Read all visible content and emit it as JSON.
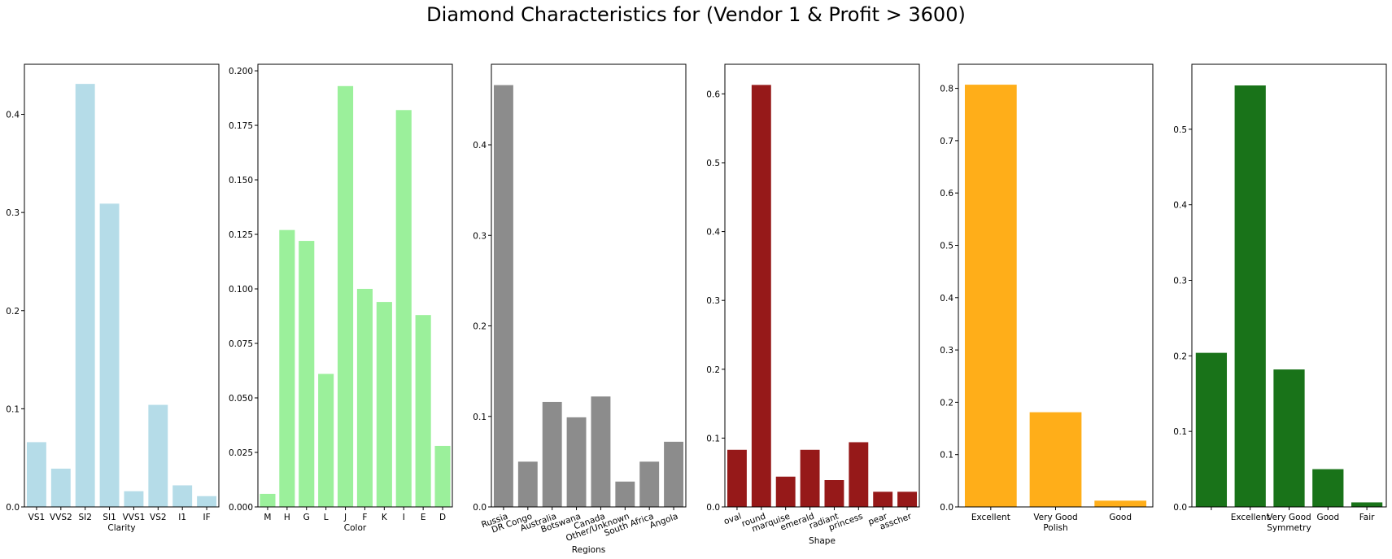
{
  "title": "Diamond Characteristics for    (Vendor 1 & Profit > 3600)",
  "chart_data": [
    {
      "type": "bar",
      "xlabel": "Clarity",
      "categories": [
        "VS1",
        "VVS2",
        "SI2",
        "SI1",
        "VVS1",
        "VS2",
        "I1",
        "IF"
      ],
      "values": [
        0.066,
        0.039,
        0.431,
        0.309,
        0.016,
        0.104,
        0.022,
        0.011
      ],
      "ylim": [
        0,
        0.451
      ],
      "yticks": [
        0.0,
        0.1,
        0.2,
        0.3,
        0.4
      ],
      "ytick_labels": [
        "0.0",
        "0.1",
        "0.2",
        "0.3",
        "0.4"
      ],
      "color": "#add8e6",
      "rotate_xticks": false
    },
    {
      "type": "bar",
      "xlabel": "Color",
      "categories": [
        "M",
        "H",
        "G",
        "L",
        "J",
        "F",
        "K",
        "I",
        "E",
        "D"
      ],
      "values": [
        0.006,
        0.127,
        0.122,
        0.061,
        0.193,
        0.1,
        0.094,
        0.182,
        0.088,
        0.028
      ],
      "ylim": [
        0,
        0.203
      ],
      "yticks": [
        0.0,
        0.025,
        0.05,
        0.075,
        0.1,
        0.125,
        0.15,
        0.175,
        0.2
      ],
      "ytick_labels": [
        "0.000",
        "0.025",
        "0.050",
        "0.075",
        "0.100",
        "0.125",
        "0.150",
        "0.175",
        "0.200"
      ],
      "color": "#90ee90",
      "rotate_xticks": false
    },
    {
      "type": "bar",
      "xlabel": "Regions",
      "categories": [
        "Russia",
        "DR Congo",
        "Australia",
        "Botswana",
        "Canada",
        "Other/Unknown",
        "South Africa",
        "Angola"
      ],
      "values": [
        0.466,
        0.05,
        0.116,
        0.099,
        0.122,
        0.028,
        0.05,
        0.072
      ],
      "ylim": [
        0,
        0.489
      ],
      "yticks": [
        0.0,
        0.1,
        0.2,
        0.3,
        0.4
      ],
      "ytick_labels": [
        "0.0",
        "0.1",
        "0.2",
        "0.3",
        "0.4"
      ],
      "color": "#808080",
      "rotate_xticks": true
    },
    {
      "type": "bar",
      "xlabel": "Shape",
      "categories": [
        "oval",
        "round",
        "marquise",
        "emerald",
        "radiant",
        "princess",
        "pear",
        "asscher"
      ],
      "values": [
        0.083,
        0.613,
        0.044,
        0.083,
        0.039,
        0.094,
        0.022,
        0.022
      ],
      "ylim": [
        0,
        0.643
      ],
      "yticks": [
        0.0,
        0.1,
        0.2,
        0.3,
        0.4,
        0.5,
        0.6
      ],
      "ytick_labels": [
        "0.0",
        "0.1",
        "0.2",
        "0.3",
        "0.4",
        "0.5",
        "0.6"
      ],
      "color": "#8b0000",
      "rotate_xticks": true
    },
    {
      "type": "bar",
      "xlabel": "Polish",
      "categories": [
        "Excellent",
        "Very Good",
        "Good"
      ],
      "values": [
        0.807,
        0.181,
        0.012
      ],
      "ylim": [
        0,
        0.846
      ],
      "yticks": [
        0.0,
        0.1,
        0.2,
        0.3,
        0.4,
        0.5,
        0.6,
        0.7,
        0.8
      ],
      "ytick_labels": [
        "0.0",
        "0.1",
        "0.2",
        "0.3",
        "0.4",
        "0.5",
        "0.6",
        "0.7",
        "0.8"
      ],
      "color": "#ffa500",
      "rotate_xticks": false
    },
    {
      "type": "bar",
      "xlabel": "Symmetry",
      "categories": [
        "",
        "Excellent",
        "Very Good",
        "Good",
        "Fair"
      ],
      "values": [
        0.204,
        0.558,
        0.182,
        0.05,
        0.006
      ],
      "ylim": [
        0,
        0.586
      ],
      "yticks": [
        0.0,
        0.1,
        0.2,
        0.3,
        0.4,
        0.5
      ],
      "ytick_labels": [
        "0.0",
        "0.1",
        "0.2",
        "0.3",
        "0.4",
        "0.5"
      ],
      "color": "#006400",
      "rotate_xticks": false
    }
  ]
}
